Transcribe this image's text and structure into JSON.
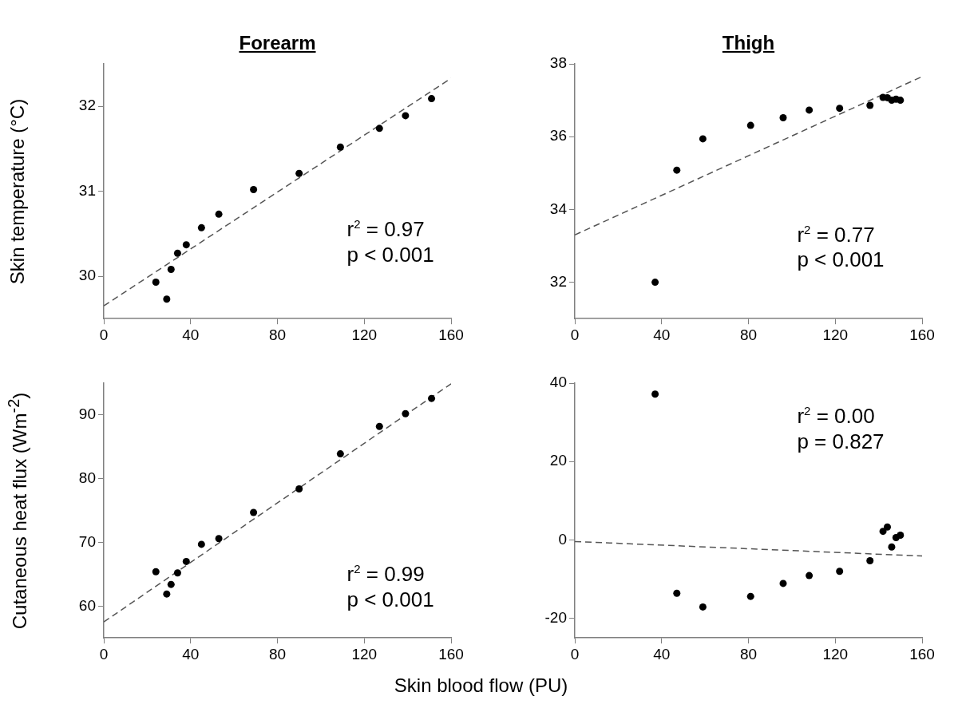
{
  "chart_data": [
    {
      "type": "scatter",
      "title": "Forearm",
      "ylabel": "Skin temperature (°C)",
      "xlim": [
        0,
        160
      ],
      "xticks": [
        0,
        40,
        80,
        120,
        160
      ],
      "ylim": [
        29.5,
        32.5
      ],
      "yticks": [
        30,
        31,
        32
      ],
      "grid": false,
      "legend": false,
      "marker": "circle",
      "annotations": [
        "r$^{2}$ = 0.97",
        "p < 0.001"
      ],
      "series": [
        {
          "color": "#000000",
          "x": [
            24,
            29,
            31,
            34,
            38,
            45,
            53,
            69,
            90,
            109,
            127,
            139,
            151
          ],
          "values": [
            29.93,
            29.73,
            30.08,
            30.27,
            30.37,
            30.57,
            30.73,
            31.02,
            31.21,
            31.52,
            31.74,
            31.89,
            32.09
          ]
        },
        {
          "type": "line",
          "color": "#555555",
          "line_style": "dashed",
          "marker": "none",
          "x": [
            0,
            160
          ],
          "values": [
            29.65,
            32.33
          ]
        }
      ]
    },
    {
      "type": "scatter",
      "title": "Thigh",
      "xlim": [
        0,
        160
      ],
      "xticks": [
        0,
        40,
        80,
        120,
        160
      ],
      "ylim": [
        31,
        38
      ],
      "yticks": [
        32,
        34,
        36,
        38
      ],
      "grid": false,
      "legend": false,
      "marker": "circle",
      "annotations": [
        "r$^{2}$ = 0.77",
        "p < 0.001"
      ],
      "series": [
        {
          "color": "#000000",
          "x": [
            37,
            47,
            59,
            81,
            96,
            108,
            122,
            136,
            142,
            144,
            146,
            148,
            150
          ],
          "values": [
            32.0,
            35.08,
            35.94,
            36.31,
            36.52,
            36.73,
            36.78,
            36.86,
            37.08,
            37.07,
            37.0,
            37.03,
            37.0
          ]
        },
        {
          "type": "line",
          "color": "#555555",
          "line_style": "dashed",
          "marker": "none",
          "x": [
            0,
            160
          ],
          "values": [
            33.3,
            37.65
          ]
        }
      ]
    },
    {
      "type": "scatter",
      "ylabel": "Cutaneous heat flux (Wm$^{-2}$)",
      "xlabel": "Skin blood flow (PU)",
      "xlim": [
        0,
        160
      ],
      "xticks": [
        0,
        40,
        80,
        120,
        160
      ],
      "ylim": [
        55,
        95
      ],
      "yticks": [
        60,
        70,
        80,
        90
      ],
      "grid": false,
      "legend": false,
      "marker": "circle",
      "annotations": [
        "r$^{2}$ = 0.99",
        "p < 0.001"
      ],
      "series": [
        {
          "color": "#000000",
          "x": [
            24,
            29,
            31,
            34,
            38,
            45,
            53,
            69,
            90,
            109,
            127,
            139,
            151
          ],
          "values": [
            65.4,
            61.9,
            63.4,
            65.2,
            67.0,
            69.7,
            70.6,
            74.7,
            78.4,
            83.9,
            88.2,
            90.2,
            92.6
          ]
        },
        {
          "type": "line",
          "color": "#555555",
          "line_style": "dashed",
          "marker": "none",
          "x": [
            0,
            160
          ],
          "values": [
            57.5,
            94.9
          ]
        }
      ]
    },
    {
      "type": "scatter",
      "xlim": [
        0,
        160
      ],
      "xticks": [
        0,
        40,
        80,
        120,
        160
      ],
      "ylim": [
        -25,
        40
      ],
      "yticks": [
        -20,
        0,
        20,
        40
      ],
      "grid": false,
      "legend": false,
      "marker": "circle",
      "annotations": [
        "r$^{2}$ = 0.00",
        "p = 0.827"
      ],
      "series": [
        {
          "color": "#000000",
          "x": [
            37,
            47,
            59,
            81,
            96,
            108,
            122,
            136,
            142,
            144,
            146,
            148,
            150
          ],
          "values": [
            37.2,
            -13.6,
            -17.1,
            -14.4,
            -11.1,
            -9.1,
            -8.0,
            -5.3,
            2.2,
            3.3,
            -1.8,
            0.6,
            1.2
          ]
        },
        {
          "type": "line",
          "color": "#555555",
          "line_style": "dashed",
          "marker": "none",
          "x": [
            0,
            160
          ],
          "values": [
            -0.4,
            -4.1
          ]
        }
      ]
    }
  ]
}
